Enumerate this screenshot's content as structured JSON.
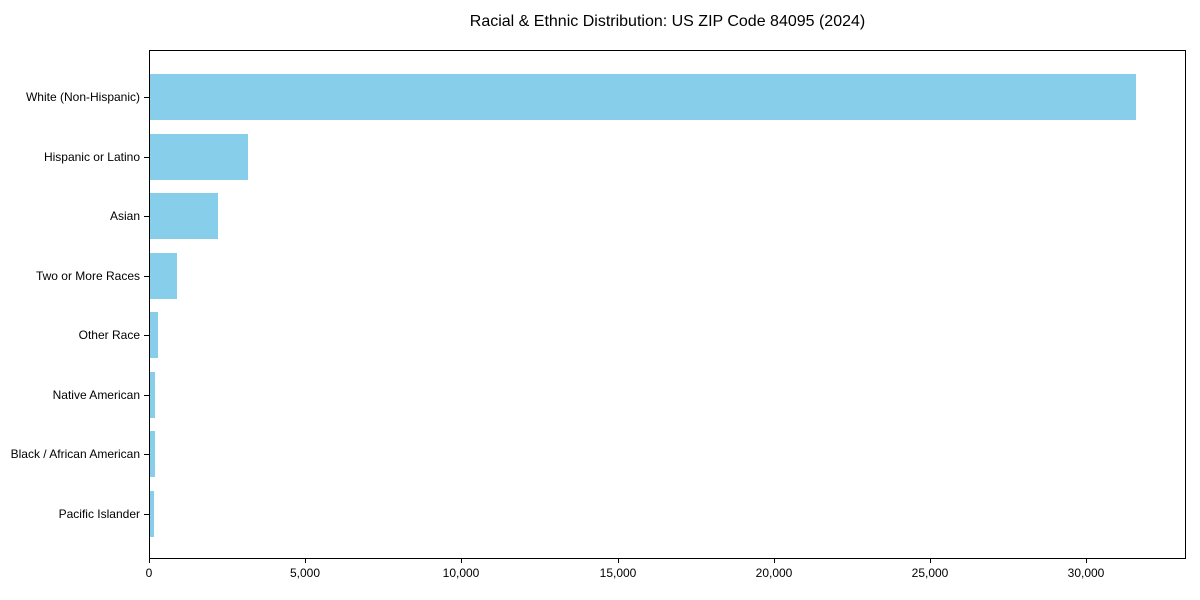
{
  "title": "Racial & Ethnic Distribution: US ZIP Code 84095 (2024)",
  "chart_data": {
    "type": "bar",
    "orientation": "horizontal",
    "title": "Racial & Ethnic Distribution: US ZIP Code 84095 (2024)",
    "xlabel": "",
    "ylabel": "",
    "categories": [
      "White (Non-Hispanic)",
      "Hispanic or Latino",
      "Asian",
      "Two or More Races",
      "Other Race",
      "Native American",
      "Black / African American",
      "Pacific Islander"
    ],
    "values": [
      31620,
      3130,
      2190,
      865,
      255,
      160,
      145,
      130
    ],
    "xlim": [
      0,
      33200
    ],
    "x_ticks": [
      0,
      5000,
      10000,
      15000,
      20000,
      25000,
      30000
    ],
    "x_tick_labels": [
      "0",
      "5,000",
      "10,000",
      "15,000",
      "20,000",
      "25,000",
      "30,000"
    ],
    "bar_color": "#87CEEB",
    "grid": false,
    "legend_position": "none"
  }
}
